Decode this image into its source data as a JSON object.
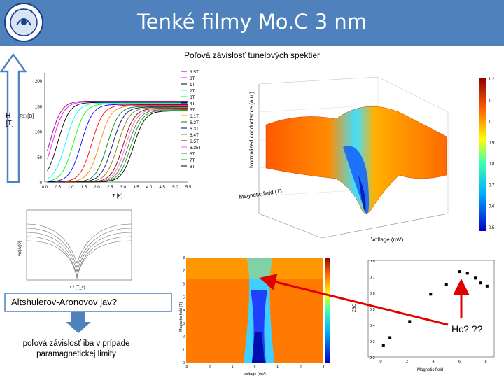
{
  "header": {
    "title": "Tenké filmy Mo.C 3 nm",
    "logo_icon": "university-seal-icon",
    "logo_text": "CENTRUM FYZIKY NÍZKYCH TEPLÔT"
  },
  "subtitle": "Poľová závislosť tunelových spektier",
  "side_arrow": {
    "label_line1": "H",
    "label_line2": "[T]"
  },
  "resistance_plot": {
    "ylabel": "R□ [Ω]",
    "xlabel": "T [K]",
    "yticks": [
      "0",
      "50",
      "100",
      "150",
      "200"
    ],
    "xticks": [
      "0.0",
      "0.5",
      "1.0",
      "1.5",
      "2.0",
      "2.5",
      "3.0",
      "3.5",
      "4.0",
      "4.5",
      "5.0",
      "5.5"
    ],
    "legend": [
      "3.5T",
      "3T",
      "1T",
      "2T",
      "3T",
      "4T",
      "5T",
      "6.1T",
      "6.2T",
      "6.3T",
      "6.4T",
      "6.5T",
      "6.25T",
      "6T",
      "7T",
      "8T"
    ],
    "colors": [
      "#800080",
      "#ff00ff",
      "#000000",
      "#00ffff",
      "#00ff00",
      "#0000ff",
      "#ff0000",
      "#ff8800",
      "#008000",
      "#000080",
      "#808000",
      "#800000",
      "#ff66cc",
      "#666666",
      "#00aa00",
      "#000000"
    ]
  },
  "surface_plot": {
    "xlabel": "Voltage (mV)",
    "ylabel": "Magnetic field (T)",
    "zlabel": "Normalized conductance (a.u.)",
    "colorbar_ticks": [
      "1.2",
      "1.1",
      "1",
      "0.9",
      "0.8",
      "0.7",
      "0.6",
      "0.5"
    ]
  },
  "dos_plot": {
    "xlabel": "ε / (T_c)",
    "ylabel": "ν(ε)/ν(0)"
  },
  "heatmap": {
    "ylabel": "Magnetic field (T)",
    "xlabel": "Voltage (mV)",
    "yticks": [
      "0",
      "1",
      "2",
      "3",
      "4",
      "5",
      "6",
      "7",
      "8"
    ],
    "xticks": [
      "-3",
      "-2",
      "-1",
      "0",
      "1",
      "2",
      "3"
    ]
  },
  "scatter_plot": {
    "xlabel": "Magnetic field",
    "ylabel": "ZBC",
    "yticks": [
      "0.8",
      "0.7",
      "0.6",
      "0.5",
      "0.4",
      "0.3",
      "0.2"
    ],
    "xticks": [
      "0",
      "2",
      "4",
      "6",
      "8"
    ],
    "points": [
      [
        0.2,
        0.27
      ],
      [
        0.7,
        0.32
      ],
      [
        2.2,
        0.42
      ],
      [
        3.8,
        0.59
      ],
      [
        5.0,
        0.65
      ],
      [
        6.0,
        0.73
      ],
      [
        6.6,
        0.72
      ],
      [
        7.2,
        0.69
      ],
      [
        7.6,
        0.66
      ],
      [
        8.1,
        0.64
      ]
    ]
  },
  "annotations": {
    "altshuler": "Altshulerov-Aronovov jav?",
    "paramagnetic": "poľová závislosť iba v prípade paramagnetickej limity",
    "hc": "Hc? ??"
  }
}
